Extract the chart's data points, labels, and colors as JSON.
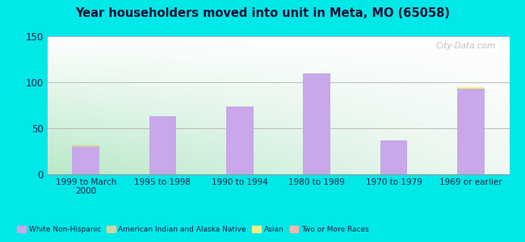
{
  "title": "Year householders moved into unit in Meta, MO (65058)",
  "categories": [
    "1999 to March\n2000",
    "1995 to 1998",
    "1990 to 1994",
    "1980 to 1989",
    "1970 to 1979",
    "1969 or earlier"
  ],
  "white_non_hispanic": [
    30,
    63,
    74,
    110,
    37,
    93
  ],
  "american_indian": [
    2,
    0,
    0,
    0,
    0,
    0
  ],
  "asian": [
    0,
    0,
    0,
    0,
    0,
    2
  ],
  "two_or_more": [
    0,
    0,
    0,
    0,
    0,
    0
  ],
  "white_color": "#c8a8e8",
  "american_indian_color": "#d4d4a0",
  "asian_color": "#f0f080",
  "two_or_more_color": "#f4b8b0",
  "background_outer": "#00e8e8",
  "ylim": [
    0,
    150
  ],
  "yticks": [
    0,
    50,
    100,
    150
  ],
  "bar_width": 0.35,
  "legend_labels": [
    "White Non-Hispanic",
    "American Indian and Alaska Native",
    "Asian",
    "Two or More Races"
  ],
  "watermark": "City-Data.com",
  "grad_left": "#b8e8c8",
  "grad_right": "#f0f8f4"
}
